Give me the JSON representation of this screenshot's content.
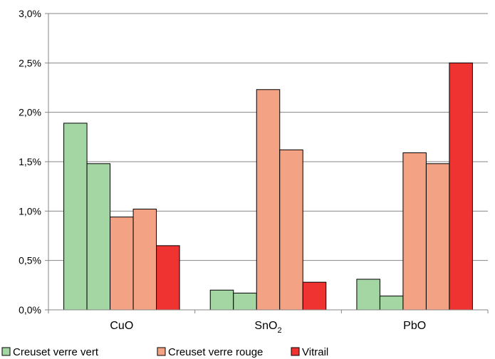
{
  "chart_data": {
    "type": "bar",
    "categories": [
      {
        "base": "CuO",
        "sub": ""
      },
      {
        "base": "SnO",
        "sub": "2"
      },
      {
        "base": "PbO",
        "sub": ""
      }
    ],
    "ylim": [
      0,
      0.03
    ],
    "yticks": [
      "0,0%",
      "0,5%",
      "1,0%",
      "1,5%",
      "2,0%",
      "2,5%",
      "3,0%"
    ],
    "grid": true,
    "legend_position": "bottom",
    "legend": [
      {
        "name": "Creuset verre vert",
        "color": "#a3d6a3"
      },
      {
        "name": "Creuset verre rouge",
        "color": "#f4a284"
      },
      {
        "name": "Vitrail",
        "color": "#ee3331"
      }
    ],
    "bars": [
      {
        "values": [
          0.0189,
          0.0148
        ],
        "group": 0
      },
      {
        "values": [
          0.0094,
          0.0102
        ],
        "group": 1
      },
      {
        "values": [
          0.0065
        ],
        "group": 2
      },
      {
        "values": [
          0.002,
          0.0017
        ],
        "group": 0
      },
      {
        "values": [
          0.0223,
          0.0162
        ],
        "group": 1
      },
      {
        "values": [
          0.0028
        ],
        "group": 2
      },
      {
        "values": [
          0.0031,
          0.0014
        ],
        "group": 0
      },
      {
        "values": [
          0.0159,
          0.0148
        ],
        "group": 1
      },
      {
        "values": [
          0.025
        ],
        "group": 2
      }
    ],
    "series": [
      {
        "name": "Creuset verre vert",
        "values": [
          [
            0.0189,
            0.0148
          ],
          [
            0.002,
            0.0017
          ],
          [
            0.0031,
            0.0014
          ]
        ]
      },
      {
        "name": "Creuset verre rouge",
        "values": [
          [
            0.0094,
            0.0102
          ],
          [
            0.0223,
            0.0162
          ],
          [
            0.0159,
            0.0148
          ]
        ]
      },
      {
        "name": "Vitrail",
        "values": [
          [
            0.0065
          ],
          [
            0.0028
          ],
          [
            0.025
          ]
        ]
      }
    ]
  }
}
